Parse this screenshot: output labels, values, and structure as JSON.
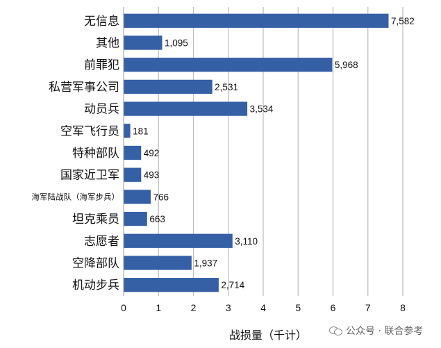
{
  "chart_data": {
    "type": "bar",
    "orientation": "horizontal",
    "categories": [
      "无信息",
      "其他",
      "前罪犯",
      "私营军事公司",
      "动员兵",
      "空军飞行员",
      "特种部队",
      "国家近卫军",
      "海军陆战队（海军步兵）",
      "坦克乘员",
      "志愿者",
      "空降部队",
      "机动步兵"
    ],
    "values": [
      7582,
      1095,
      5968,
      2531,
      3534,
      181,
      492,
      493,
      766,
      663,
      3110,
      1937,
      2714
    ],
    "value_labels": [
      "7,582",
      "1,095",
      "5,968",
      "2,531",
      "3,534",
      "181",
      "492",
      "493",
      "766",
      "663",
      "3,110",
      "1,937",
      "2,714"
    ],
    "xlabel": "战损量（千计）",
    "ylabel": "",
    "title": "",
    "xlim": [
      0,
      8
    ],
    "xticks": [
      "0",
      "1",
      "2",
      "3",
      "4",
      "5",
      "6",
      "7",
      "8"
    ],
    "grid": "vertical",
    "bar_color": "#3560a6",
    "grid_color": "#bfbfbf"
  },
  "watermark": {
    "text": "公众号 · 联合参考",
    "icon": "chat-bubbles-icon"
  }
}
